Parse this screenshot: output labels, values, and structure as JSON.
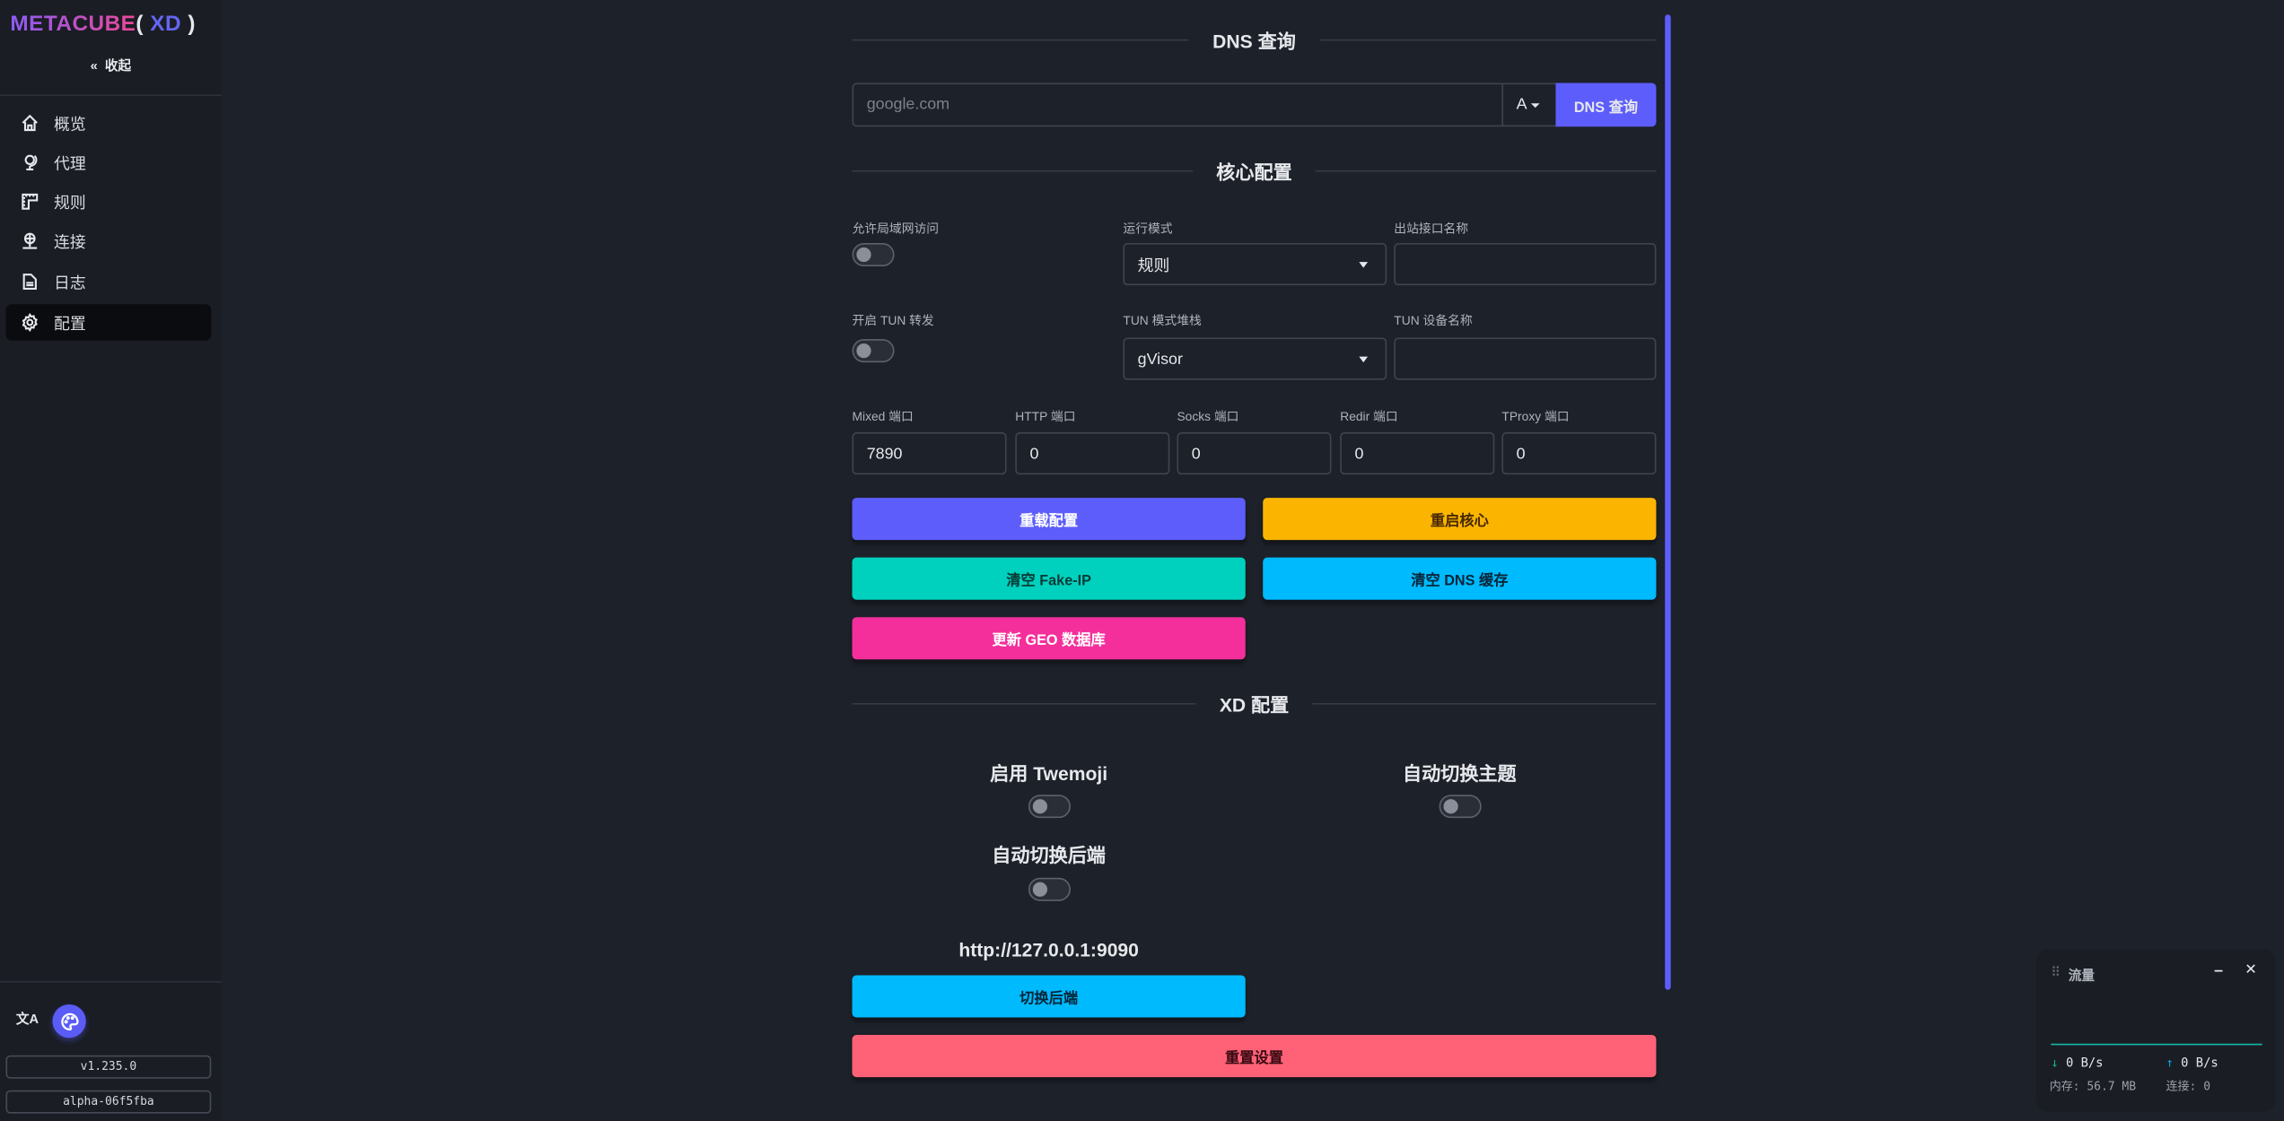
{
  "sidebar": {
    "logo": {
      "main": "METACUBE",
      "open": "(",
      "xd": " XD",
      "close": " )"
    },
    "collapse_label": "收起",
    "items": [
      {
        "label": "概览",
        "icon": "home-icon"
      },
      {
        "label": "代理",
        "icon": "globe-stand-icon"
      },
      {
        "label": "规则",
        "icon": "ruler-icon"
      },
      {
        "label": "连接",
        "icon": "network-icon"
      },
      {
        "label": "日志",
        "icon": "file-text-icon"
      },
      {
        "label": "配置",
        "icon": "gear-icon",
        "active": true
      }
    ],
    "language_icon": "文A",
    "version": "v1.235.0",
    "build": "alpha-06f5fba"
  },
  "dns": {
    "title": "DNS 查询",
    "placeholder": "google.com",
    "record_type": "A",
    "query_button": "DNS 查询"
  },
  "core": {
    "title": "核心配置",
    "allow_lan_label": "允许局域网访问",
    "allow_lan": false,
    "mode_label": "运行模式",
    "mode_value": "规则",
    "iface_label": "出站接口名称",
    "iface_value": "",
    "tun_label": "开启 TUN 转发",
    "tun": false,
    "tun_stack_label": "TUN 模式堆栈",
    "tun_stack_value": "gVisor",
    "tun_device_label": "TUN 设备名称",
    "tun_device_value": "",
    "ports": [
      {
        "label": "Mixed 端口",
        "value": "7890"
      },
      {
        "label": "HTTP 端口",
        "value": "0"
      },
      {
        "label": "Socks 端口",
        "value": "0"
      },
      {
        "label": "Redir 端口",
        "value": "0"
      },
      {
        "label": "TProxy 端口",
        "value": "0"
      }
    ],
    "buttons": {
      "reload": "重载配置",
      "restart": "重启核心",
      "flush_fakeip": "清空 Fake-IP",
      "flush_dns": "清空 DNS 缓存",
      "update_geo": "更新 GEO 数据库"
    }
  },
  "xd": {
    "title": "XD 配置",
    "twemoji_label": "启用 Twemoji",
    "twemoji": false,
    "auto_theme_label": "自动切换主题",
    "auto_theme": false,
    "auto_backend_label": "自动切换后端",
    "auto_backend": false,
    "backend_url": "http://127.0.0.1:9090",
    "switch_backend": "切换后端",
    "reset": "重置设置"
  },
  "traffic": {
    "title": "流量",
    "download": "0 B/s",
    "upload": "0 B/s",
    "memory_label": "内存:",
    "memory": "56.7 MB",
    "connections_label": "连接:",
    "connections": "0"
  },
  "colors": {
    "primary": "#5d5dfb",
    "warning": "#fbb500",
    "success": "#00d1be",
    "info": "#00bafe",
    "accent": "#f42f9c",
    "error": "#ff6277"
  }
}
